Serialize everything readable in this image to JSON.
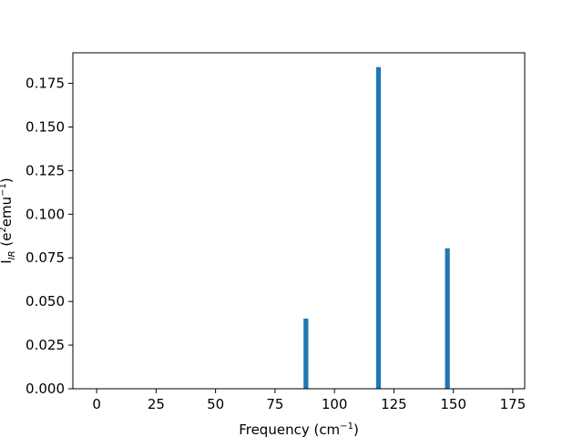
{
  "chart_data": {
    "type": "bar",
    "title": "",
    "xlabel": "Frequency (cm",
    "xlabel_sup": "−1",
    "xlabel_suffix": ")",
    "ylabel": "I",
    "ylabel_sub": "IR",
    "ylabel_rest": " (e",
    "ylabel_sup1": "2",
    "ylabel_mid": "emu",
    "ylabel_sup2": "−1",
    "ylabel_end": ")",
    "x": [
      88,
      118.5,
      147.5
    ],
    "values": [
      0.0402,
      0.1843,
      0.0805
    ],
    "bar_width": 2,
    "bar_color": "#1f77b4",
    "xlim": [
      -10,
      180
    ],
    "ylim": [
      0,
      0.1925
    ],
    "xticks": [
      0,
      25,
      50,
      75,
      100,
      125,
      150,
      175
    ],
    "xtick_labels": [
      "0",
      "25",
      "50",
      "75",
      "100",
      "125",
      "150",
      "175"
    ],
    "yticks": [
      0,
      0.025,
      0.05,
      0.075,
      0.1,
      0.125,
      0.15,
      0.175
    ],
    "ytick_labels": [
      "0.000",
      "0.025",
      "0.050",
      "0.075",
      "0.100",
      "0.125",
      "0.150",
      "0.175"
    ],
    "grid": false,
    "legend": "none"
  }
}
